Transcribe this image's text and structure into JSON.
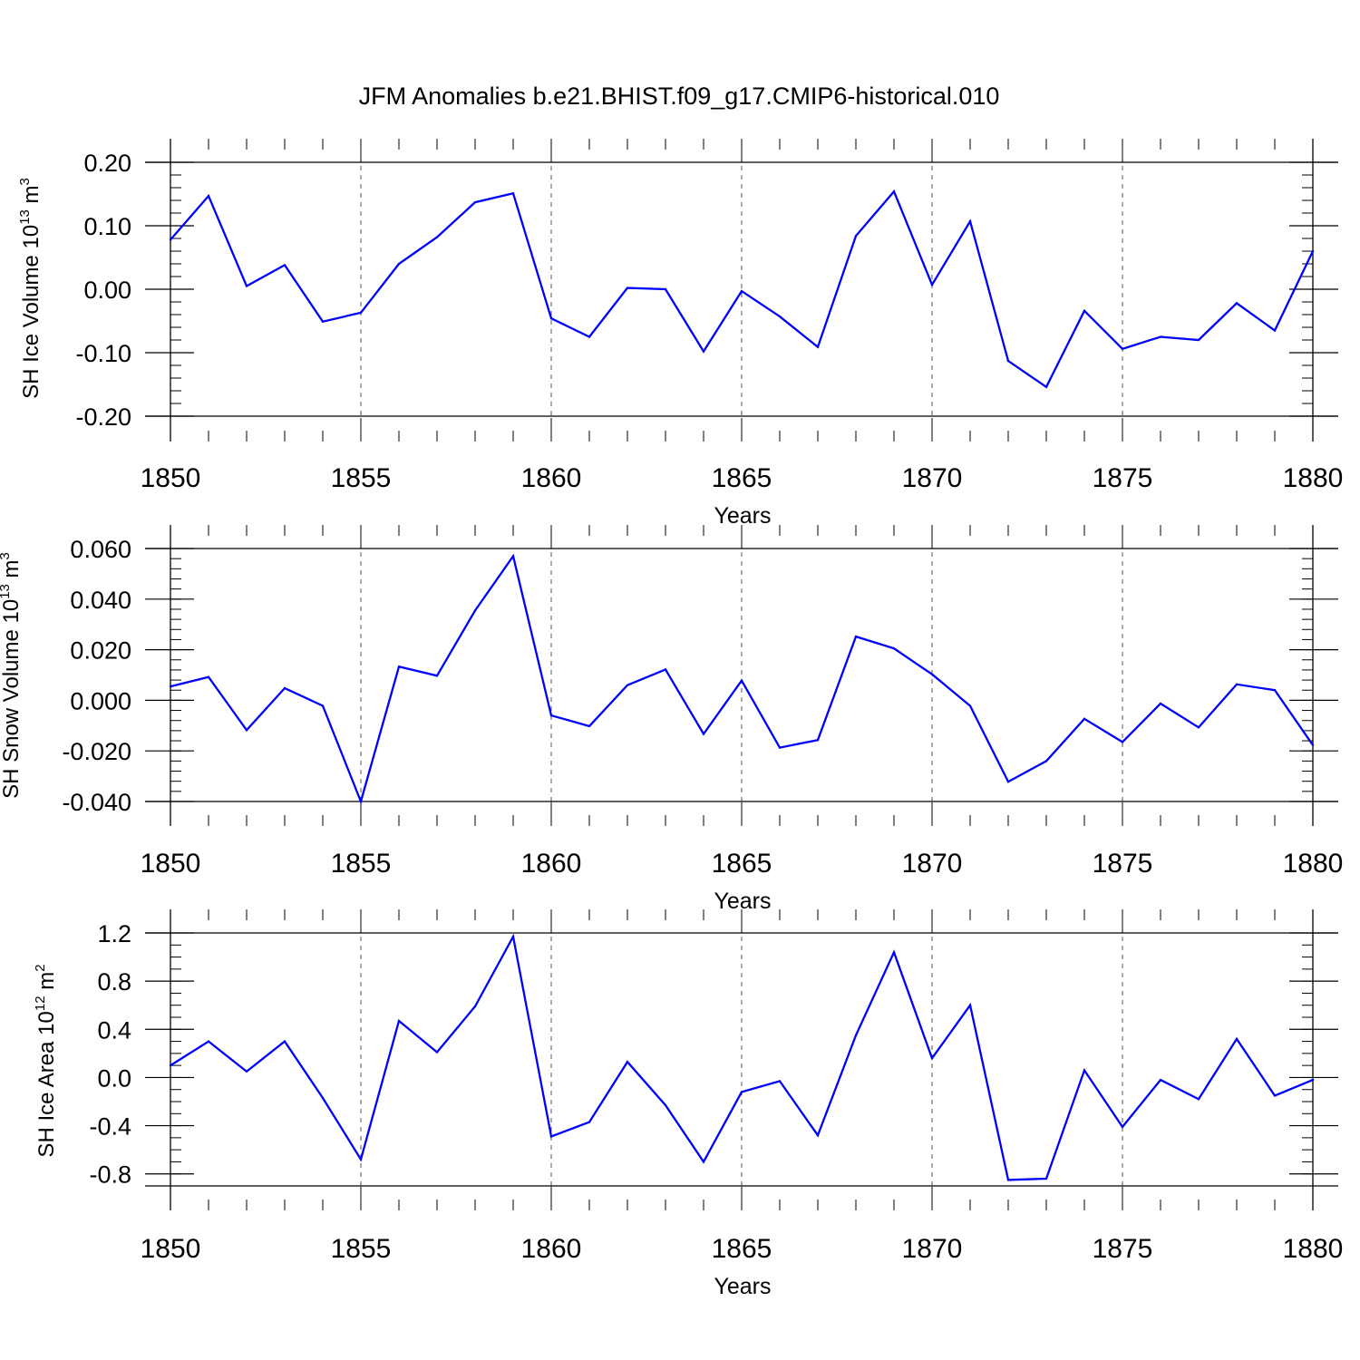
{
  "title": "JFM Anomalies b.e21.BHIST.f09_g17.CMIP6-historical.010",
  "colors": {
    "line": "#0000ff",
    "axis": "#000000",
    "grid": "#555555"
  },
  "chart_data": [
    {
      "type": "line",
      "title": "JFM Anomalies b.e21.BHIST.f09_g17.CMIP6-historical.010",
      "xlabel": "Years",
      "ylabel": {
        "text": "SH Ice Volume 10",
        "exp": "13",
        "unit": " m",
        "unit_exp": "3"
      },
      "xlim": [
        1850,
        1880
      ],
      "ylim": [
        -0.2,
        0.2
      ],
      "x_ticks": [
        "1850",
        "1855",
        "1860",
        "1865",
        "1870",
        "1875",
        "1880"
      ],
      "y_ticks": [
        {
          "value": 0.2,
          "label": "0.20"
        },
        {
          "value": 0.1,
          "label": "0.10"
        },
        {
          "value": 0.0,
          "label": "0.00"
        },
        {
          "value": -0.1,
          "label": "-0.10"
        },
        {
          "value": -0.2,
          "label": "-0.20"
        }
      ],
      "y_minor_step": 0.02,
      "grid": "dashed vertical at x major ticks",
      "x": [
        1850,
        1851,
        1852,
        1853,
        1854,
        1855,
        1856,
        1857,
        1858,
        1859,
        1860,
        1861,
        1862,
        1863,
        1864,
        1865,
        1866,
        1867,
        1868,
        1869,
        1870,
        1871,
        1872,
        1873,
        1874,
        1875,
        1876,
        1877,
        1878,
        1879,
        1880
      ],
      "series": [
        {
          "values": [
            0.078,
            0.147,
            0.005,
            0.038,
            -0.051,
            -0.037,
            0.04,
            0.082,
            0.137,
            0.151,
            -0.046,
            -0.075,
            0.002,
            0.0,
            -0.098,
            -0.003,
            -0.043,
            -0.091,
            0.084,
            0.154,
            0.007,
            0.107,
            -0.113,
            -0.154,
            -0.034,
            -0.094,
            -0.075,
            -0.08,
            -0.022,
            -0.065,
            0.06
          ]
        }
      ]
    },
    {
      "type": "line",
      "xlabel": "Years",
      "ylabel": {
        "text": "SH Snow Volume 10",
        "exp": "13",
        "unit": " m",
        "unit_exp": "3"
      },
      "xlim": [
        1850,
        1880
      ],
      "ylim": [
        -0.04,
        0.06
      ],
      "x_ticks": [
        "1850",
        "1855",
        "1860",
        "1865",
        "1870",
        "1875",
        "1880"
      ],
      "y_ticks": [
        {
          "value": 0.06,
          "label": "0.060"
        },
        {
          "value": 0.04,
          "label": "0.040"
        },
        {
          "value": 0.02,
          "label": "0.020"
        },
        {
          "value": 0.0,
          "label": "0.000"
        },
        {
          "value": -0.02,
          "label": "-0.020"
        },
        {
          "value": -0.04,
          "label": "-0.040"
        }
      ],
      "y_minor_step": 0.004,
      "grid": "dashed vertical at x major ticks",
      "x": [
        1850,
        1851,
        1852,
        1853,
        1854,
        1855,
        1856,
        1857,
        1858,
        1859,
        1860,
        1861,
        1862,
        1863,
        1864,
        1865,
        1866,
        1867,
        1868,
        1869,
        1870,
        1871,
        1872,
        1873,
        1874,
        1875,
        1876,
        1877,
        1878,
        1879,
        1880
      ],
      "series": [
        {
          "values": [
            0.0055,
            0.0092,
            -0.0118,
            0.0048,
            -0.0022,
            -0.04,
            0.0133,
            0.0097,
            0.0355,
            0.057,
            -0.006,
            -0.0102,
            0.006,
            0.0122,
            -0.0133,
            0.0078,
            -0.0187,
            -0.0157,
            0.0252,
            0.0205,
            0.0103,
            -0.0022,
            -0.0322,
            -0.024,
            -0.0073,
            -0.0165,
            -0.0013,
            -0.0107,
            0.0063,
            0.004,
            -0.0177
          ]
        }
      ]
    },
    {
      "type": "line",
      "xlabel": "Years",
      "ylabel": {
        "text": "SH Ice Area 10",
        "exp": "12",
        "unit": " m",
        "unit_exp": "2"
      },
      "xlim": [
        1850,
        1880
      ],
      "ylim": [
        -0.9,
        1.2
      ],
      "x_ticks": [
        "1850",
        "1855",
        "1860",
        "1865",
        "1870",
        "1875",
        "1880"
      ],
      "y_ticks": [
        {
          "value": 1.2,
          "label": "1.2"
        },
        {
          "value": 0.8,
          "label": "0.8"
        },
        {
          "value": 0.4,
          "label": "0.4"
        },
        {
          "value": 0.0,
          "label": "0.0"
        },
        {
          "value": -0.4,
          "label": "-0.4"
        },
        {
          "value": -0.8,
          "label": "-0.8"
        }
      ],
      "y_minor_step": 0.1,
      "grid": "dashed vertical at x major ticks",
      "x": [
        1850,
        1851,
        1852,
        1853,
        1854,
        1855,
        1856,
        1857,
        1858,
        1859,
        1860,
        1861,
        1862,
        1863,
        1864,
        1865,
        1866,
        1867,
        1868,
        1869,
        1870,
        1871,
        1872,
        1873,
        1874,
        1875,
        1876,
        1877,
        1878,
        1879,
        1880
      ],
      "series": [
        {
          "values": [
            0.1,
            0.3,
            0.05,
            0.3,
            -0.17,
            -0.68,
            0.47,
            0.21,
            0.59,
            1.17,
            -0.49,
            -0.37,
            0.13,
            -0.23,
            -0.7,
            -0.12,
            -0.03,
            -0.48,
            0.35,
            1.04,
            0.16,
            0.6,
            -0.85,
            -0.84,
            0.06,
            -0.41,
            -0.02,
            -0.18,
            0.32,
            -0.15,
            -0.02
          ]
        }
      ]
    }
  ]
}
